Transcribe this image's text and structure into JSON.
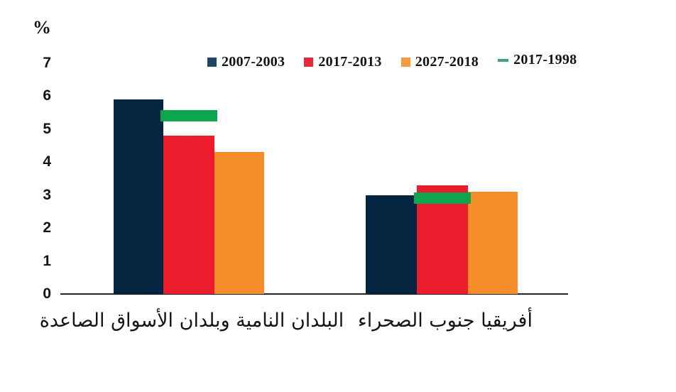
{
  "chart_data": {
    "type": "bar",
    "title": "",
    "ylabel": "%",
    "xlabel": "",
    "ylim": [
      0,
      7
    ],
    "yticks": [
      0,
      1,
      2,
      3,
      4,
      5,
      6,
      7
    ],
    "grid": false,
    "legend_position": "top",
    "categories": [
      "البلدان النامية وبلدان الأسواق الصاعدة",
      "أفريقيا جنوب الصحراء"
    ],
    "series": [
      {
        "name": "2007-2003",
        "type": "bar",
        "color": "#052440",
        "legend_swatch_color": "#1f4568",
        "values": [
          5.9,
          3.0
        ]
      },
      {
        "name": "2017-2013",
        "type": "bar",
        "color": "#ed1c2c",
        "legend_swatch_color": "#e8293a",
        "values": [
          4.8,
          3.3
        ]
      },
      {
        "name": "2027-2018",
        "type": "bar",
        "color": "#f78d2a",
        "legend_swatch_color": "#f79b3d",
        "values": [
          4.3,
          3.1
        ]
      },
      {
        "name": "2017-1998",
        "type": "line",
        "color": "#0ea54c",
        "legend_swatch_color": "#3aa583",
        "values": [
          5.4,
          2.9
        ]
      }
    ]
  }
}
